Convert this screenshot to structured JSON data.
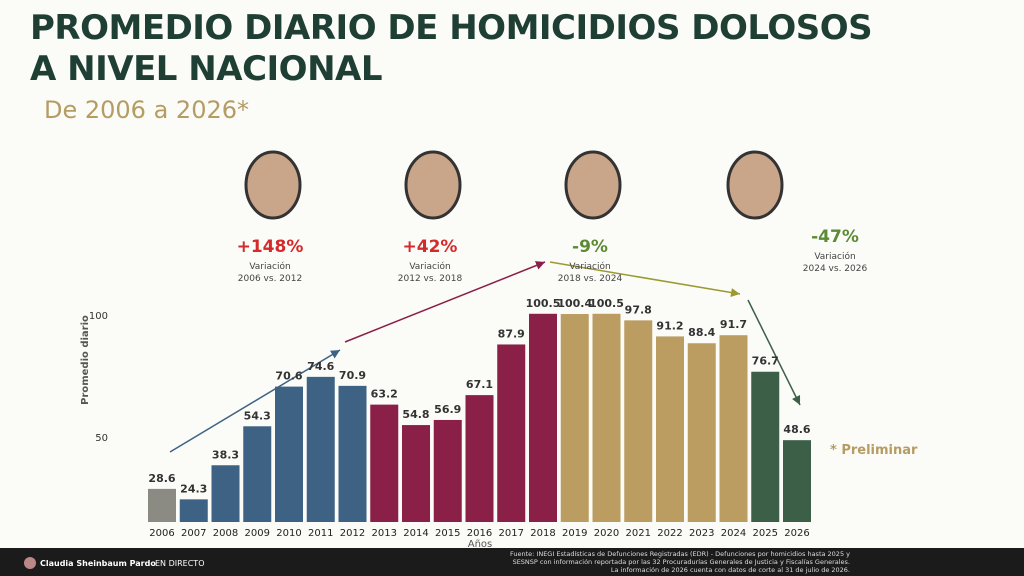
{
  "chart_data": {
    "type": "bar",
    "title": "PROMEDIO DIARIO DE HOMICIDIOS DOLOSOS A NIVEL NACIONAL",
    "subtitle": "De 2006 a 2026*",
    "categories": [
      "2006",
      "2007",
      "2008",
      "2009",
      "2010",
      "2011",
      "2012",
      "2013",
      "2014",
      "2015",
      "2016",
      "2017",
      "2018",
      "2019",
      "2020",
      "2021",
      "2022",
      "2023",
      "2024",
      "2025",
      "2026"
    ],
    "values": [
      28.6,
      24.3,
      38.3,
      54.3,
      70.6,
      74.6,
      70.9,
      63.2,
      54.8,
      56.9,
      67.1,
      87.9,
      100.5,
      100.4,
      100.5,
      97.8,
      91.2,
      88.4,
      91.7,
      76.7,
      48.6
    ],
    "colors": [
      "#8b8b84",
      "#3e6283",
      "#3e6283",
      "#3e6283",
      "#3e6283",
      "#3e6283",
      "#3e6283",
      "#8a1f47",
      "#8a1f47",
      "#8a1f47",
      "#8a1f47",
      "#8a1f47",
      "#8a1f47",
      "#bb9d62",
      "#bb9d62",
      "#bb9d62",
      "#bb9d62",
      "#bb9d62",
      "#bb9d62",
      "#3c5f48",
      "#3c5f48"
    ],
    "ylim": [
      15,
      100
    ],
    "yticks": [
      50,
      100
    ],
    "ylabel": "Promedio diario",
    "xlabel": "Años",
    "annotations": [
      {
        "text": "+148%",
        "color": "#d32b2b",
        "label": "Variación",
        "period": "2006 vs. 2012"
      },
      {
        "text": "+42%",
        "color": "#d32b2b",
        "label": "Variación",
        "period": "2012 vs. 2018"
      },
      {
        "text": "-9%",
        "color": "#5d8a34",
        "label": "Variación",
        "period": "2018 vs. 2024"
      },
      {
        "text": "-47%",
        "color": "#5d8a34",
        "label": "Variación",
        "period": "2024 vs. 2026"
      }
    ],
    "note": "* Preliminar",
    "source": [
      "Fuente: INEGI Estadísticas de Defunciones Registradas (EDR) - Defunciones por homicidios hasta 2025 y",
      "SESNSP con información reportada por las 32 Procuradurías Generales de Justicia y Fiscalías Generales.",
      "La información de 2026 cuenta con datos de corte al 31 de julio de 2026."
    ]
  },
  "player": {
    "channel": "Claudia Sheinbaum Pardo",
    "status": "EN DIRECTO"
  }
}
